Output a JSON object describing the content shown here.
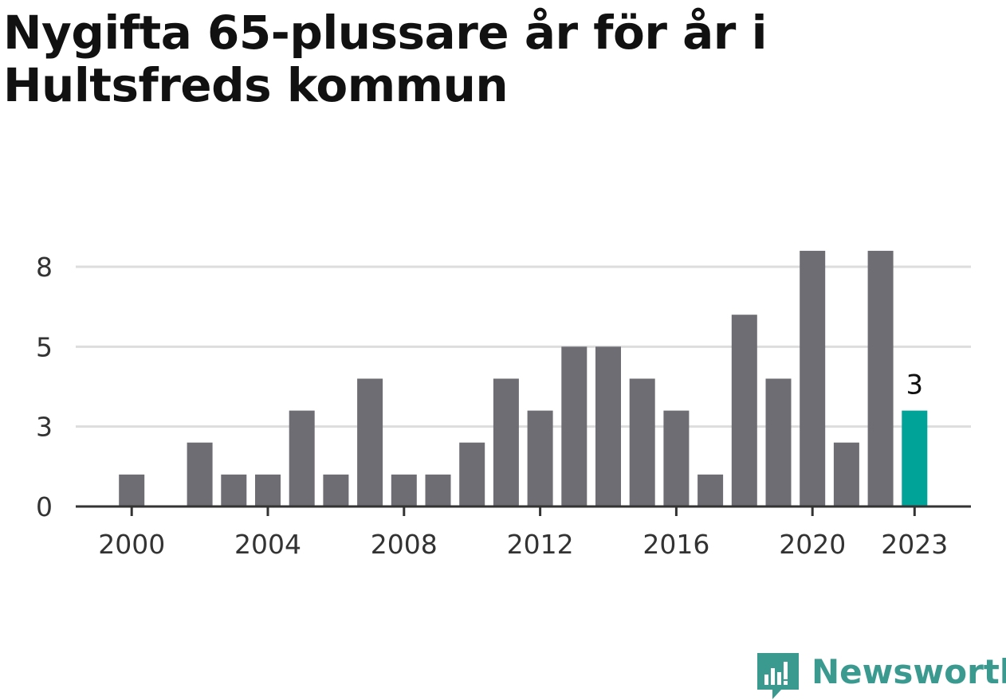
{
  "title_lines": [
    "Nygifta 65-plussare år för år i",
    "Hultsfreds kommun"
  ],
  "colors": {
    "bar": "#6e6d73",
    "highlight": "#00a397",
    "grid": "#dddddd",
    "axis": "#333333",
    "brand": "#3b9a90"
  },
  "logo": {
    "text": "Newsworthy",
    "icon": "newsworthy-logo-icon"
  },
  "chart_data": {
    "type": "bar",
    "title": "Nygifta 65-plussare år för år i Hultsfreds kommun",
    "xlabel": "",
    "ylabel": "",
    "ylim": [
      0,
      8.5
    ],
    "yticks": [
      {
        "value": 0,
        "label": "0"
      },
      {
        "value": 2.5,
        "label": "3"
      },
      {
        "value": 5,
        "label": "5"
      },
      {
        "value": 7.5,
        "label": "8"
      }
    ],
    "xticks": [
      "2000",
      "2004",
      "2008",
      "2012",
      "2016",
      "2020",
      "2023"
    ],
    "categories": [
      "1999",
      "2000",
      "2001",
      "2002",
      "2003",
      "2004",
      "2005",
      "2006",
      "2007",
      "2008",
      "2009",
      "2010",
      "2011",
      "2012",
      "2013",
      "2014",
      "2015",
      "2016",
      "2017",
      "2018",
      "2019",
      "2020",
      "2021",
      "2022",
      "2023"
    ],
    "values": [
      0,
      1,
      0,
      2,
      1,
      1,
      3,
      1,
      4,
      1,
      1,
      2,
      4,
      3,
      5,
      5,
      4,
      3,
      1,
      6,
      4,
      8,
      2,
      8,
      3
    ],
    "highlight": {
      "category": "2023",
      "label": "3"
    }
  }
}
